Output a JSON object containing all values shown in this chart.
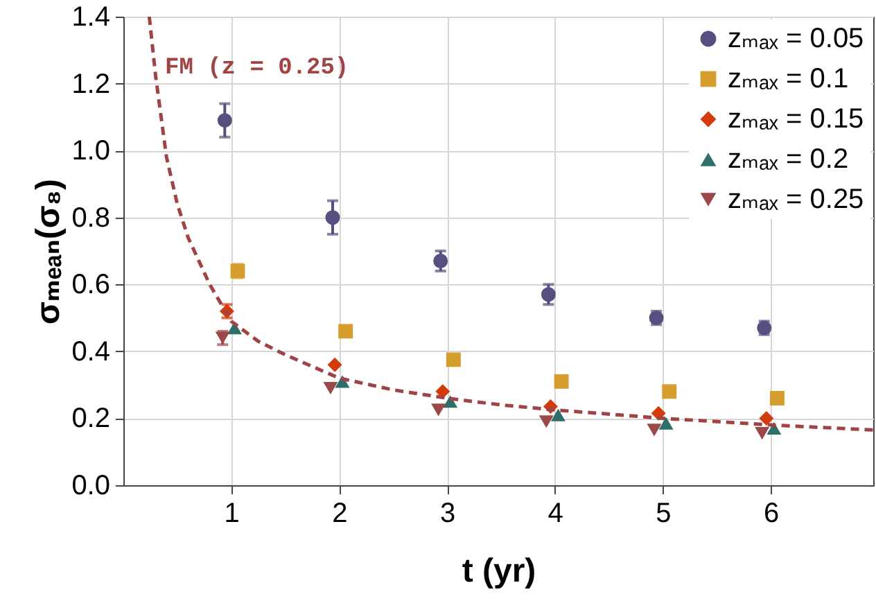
{
  "chart_data": {
    "type": "scatter",
    "xlabel": "t (yr)",
    "ylabel": "σₘₑₐₙ(σ₈)",
    "xlim": [
      0,
      6.95
    ],
    "xticks": [
      1,
      2,
      3,
      4,
      5,
      6
    ],
    "ylim": [
      0,
      1.4
    ],
    "yticks": [
      {
        "value": 0,
        "label": "0.0"
      },
      0.2,
      0.4,
      0.6,
      0.8,
      {
        "value": 1,
        "label": "1.0"
      },
      1.2,
      1.4
    ],
    "grid": true,
    "legend": "top right",
    "series": [
      {
        "name": "zₘₐₓ = 0.05",
        "color": "#55507f",
        "marker": "circle",
        "x": [
          0.94,
          1.94,
          2.94,
          3.94,
          4.94,
          5.94
        ],
        "values": [
          1.09,
          0.8,
          0.67,
          0.57,
          0.5,
          0.47
        ],
        "errors": [
          0.05,
          0.05,
          0.03,
          0.03,
          0.02,
          0.02
        ]
      },
      {
        "name": "zₘₐₓ = 0.1",
        "color": "#d69e2f",
        "marker": "square",
        "x": [
          1.06,
          2.06,
          3.06,
          4.06,
          5.06,
          6.06
        ],
        "values": [
          0.64,
          0.46,
          0.375,
          0.31,
          0.28,
          0.26
        ],
        "errors": [
          0.02,
          null,
          null,
          null,
          null,
          null
        ]
      },
      {
        "name": "zₘₐₓ = 0.15",
        "color": "#d43b0a",
        "marker": "diamond",
        "x": [
          0.96,
          1.96,
          2.96,
          3.96,
          4.96,
          5.96
        ],
        "values": [
          0.52,
          0.36,
          0.28,
          0.235,
          0.215,
          0.2
        ],
        "errors": [
          0.02,
          null,
          null,
          null,
          null,
          null
        ]
      },
      {
        "name": "zₘₐₓ = 0.2",
        "color": "#2f6e6a",
        "marker": "triangle",
        "x": [
          1.03,
          2.03,
          3.03,
          4.03,
          5.03,
          6.03
        ],
        "values": [
          0.47,
          0.31,
          0.25,
          0.21,
          0.185,
          0.17
        ]
      },
      {
        "name": "zₘₐₓ = 0.25",
        "color": "#9c4848",
        "marker": "triangle-down",
        "x": [
          0.92,
          1.92,
          2.92,
          3.92,
          4.92,
          5.92
        ],
        "values": [
          0.44,
          0.29,
          0.225,
          0.19,
          0.165,
          0.155
        ],
        "errors": [
          0.02,
          null,
          null,
          null,
          null,
          null
        ]
      },
      {
        "name": "FM (z = 0.25)",
        "type": "line",
        "line_style": "dashed",
        "color": "#a04345",
        "marker": "none",
        "x": [
          0.24,
          0.3,
          0.4,
          0.5,
          0.6,
          0.8,
          1,
          1.25,
          1.5,
          2,
          2.5,
          3,
          3.5,
          4,
          5,
          6,
          6.95
        ],
        "values": [
          1.4,
          1.22,
          0.98,
          0.84,
          0.74,
          0.6,
          0.49,
          0.43,
          0.39,
          0.32,
          0.285,
          0.26,
          0.24,
          0.225,
          0.2,
          0.18,
          0.165
        ]
      }
    ]
  }
}
